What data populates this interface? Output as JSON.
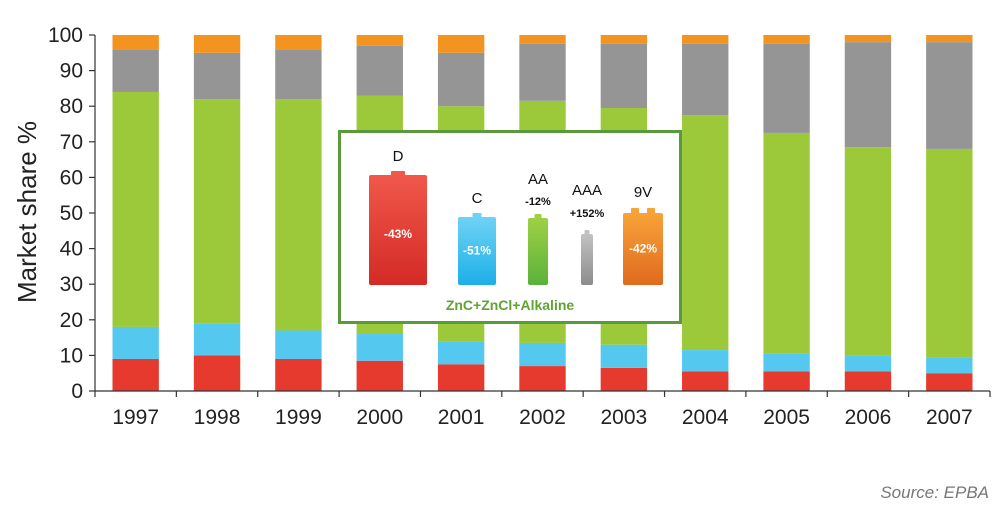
{
  "chart_data": {
    "type": "bar",
    "stacked": true,
    "ylabel": "Market share %",
    "xlabel": "",
    "ylim": [
      0,
      100
    ],
    "yticks": [
      0,
      10,
      20,
      30,
      40,
      50,
      60,
      70,
      80,
      90,
      100
    ],
    "grid": false,
    "categories": [
      "1997",
      "1998",
      "1999",
      "2000",
      "2001",
      "2002",
      "2003",
      "2004",
      "2005",
      "2006",
      "2007"
    ],
    "series": [
      {
        "color": "#e63a2e",
        "values": [
          9,
          10,
          9,
          8.5,
          7.5,
          7,
          6.5,
          5.5,
          5.5,
          5.5,
          5
        ]
      },
      {
        "color": "#55c8f0",
        "values": [
          9,
          9,
          8,
          7.5,
          6.5,
          6.5,
          6.5,
          6,
          5,
          4.5,
          4.5
        ]
      },
      {
        "color": "#9cc93a",
        "values": [
          66,
          63,
          65,
          67,
          66,
          68,
          66.5,
          66,
          62,
          58.5,
          58.5
        ]
      },
      {
        "color": "#959595",
        "values": [
          12,
          13,
          14,
          14,
          15,
          16,
          18,
          20,
          25,
          29.5,
          30
        ]
      },
      {
        "color": "#f39420",
        "values": [
          4,
          5,
          4,
          3,
          5,
          2.5,
          2.5,
          2.5,
          2.5,
          2,
          2
        ]
      }
    ]
  },
  "inset": {
    "caption": "ZnC+ZnCl+Alkaline",
    "batteries": [
      {
        "name": "D",
        "change": "-43%",
        "change_inside": true,
        "color_top": "#f0584a",
        "color_bottom": "#d42a26"
      },
      {
        "name": "C",
        "change": "-51%",
        "change_inside": true,
        "color_top": "#6fd2f5",
        "color_bottom": "#1cb0e8"
      },
      {
        "name": "AA",
        "change": "-12%",
        "change_inside": false,
        "color_top": "#9fd045",
        "color_bottom": "#5ab23a"
      },
      {
        "name": "AAA",
        "change": "+152%",
        "change_inside": false,
        "color_top": "#c2c2c2",
        "color_bottom": "#8c8c8c"
      },
      {
        "name": "9V",
        "change": "-42%",
        "change_inside": true,
        "color_top": "#f7a33a",
        "color_bottom": "#e06a1e"
      }
    ]
  },
  "source": "Source: EPBA"
}
